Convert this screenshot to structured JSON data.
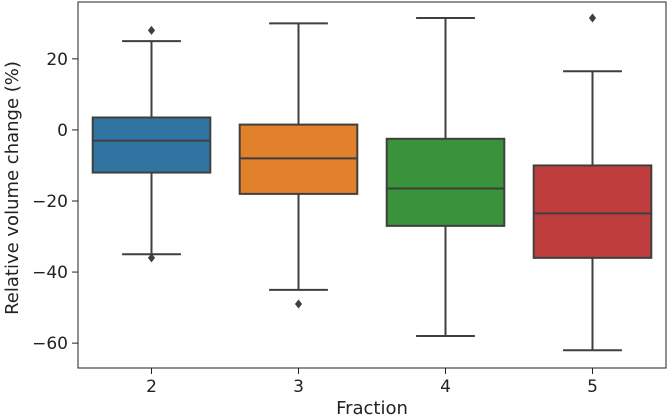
{
  "chart_data": {
    "type": "box",
    "xlabel": "Fraction",
    "ylabel": "Relative volume change (%)",
    "ylim": [
      -67,
      36
    ],
    "yticks": [
      20,
      0,
      -20,
      -40,
      -60
    ],
    "ytick_labels": [
      "20",
      "0",
      "−20",
      "−40",
      "−60"
    ],
    "categories": [
      "2",
      "3",
      "4",
      "5"
    ],
    "boxes": [
      {
        "category": "2",
        "whisker_low": -35,
        "q1": -12,
        "median": -3,
        "q3": 3.5,
        "whisker_high": 25,
        "outliers": [
          28,
          -36
        ]
      },
      {
        "category": "3",
        "whisker_low": -45,
        "q1": -18,
        "median": -8,
        "q3": 1.5,
        "whisker_high": 30,
        "outliers": [
          -49
        ]
      },
      {
        "category": "4",
        "whisker_low": -58,
        "q1": -27,
        "median": -16.5,
        "q3": -2.5,
        "whisker_high": 31.5,
        "outliers": []
      },
      {
        "category": "5",
        "whisker_low": -62,
        "q1": -36,
        "median": -23.5,
        "q3": -10,
        "whisker_high": 16.5,
        "outliers": [
          31.5
        ]
      }
    ],
    "colors": [
      "#3274a1",
      "#e1812c",
      "#3a923a",
      "#c03d3e"
    ],
    "line_color": "#3f3f3f"
  }
}
